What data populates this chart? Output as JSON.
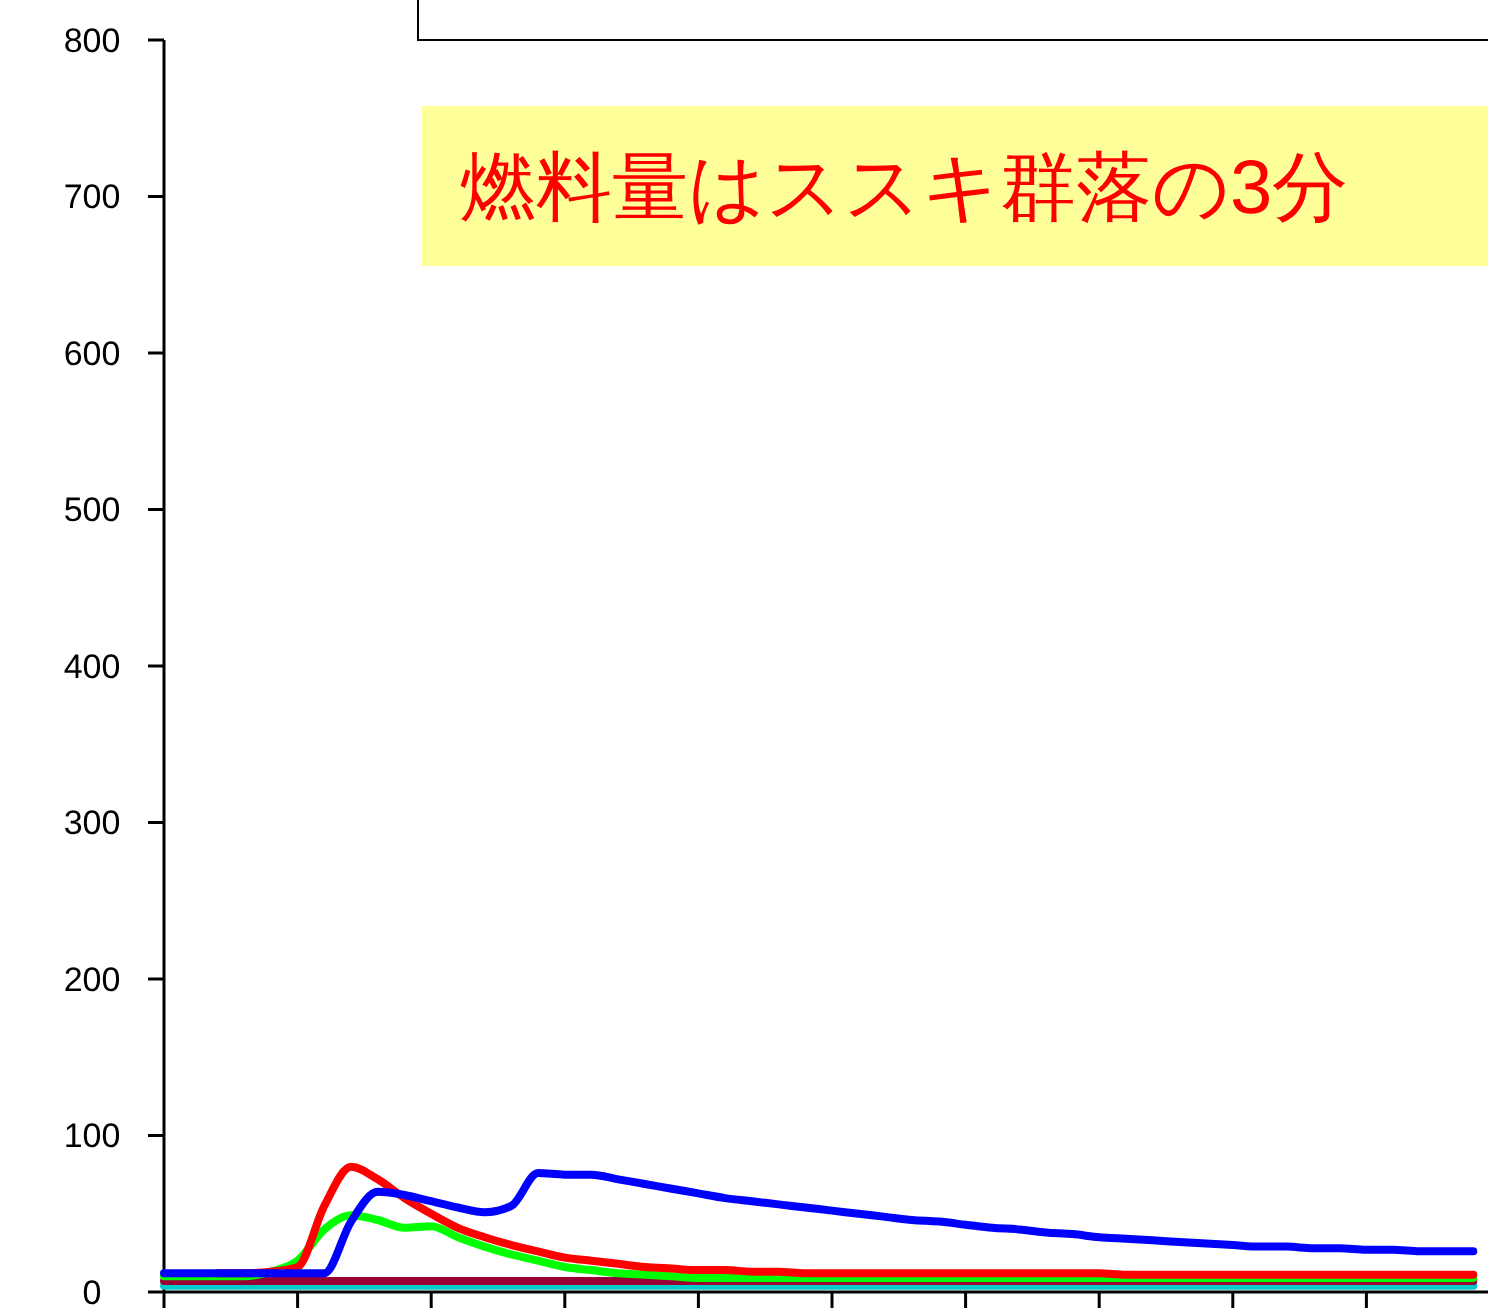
{
  "chart_data": {
    "type": "line",
    "categories": [
      null,
      null,
      null,
      null,
      null,
      null,
      null,
      null,
      null,
      null,
      null,
      null,
      null,
      null,
      null,
      null,
      null,
      null,
      null,
      null,
      null,
      null,
      null,
      null,
      null,
      null,
      null,
      null,
      null,
      null,
      null,
      null,
      null,
      null,
      null,
      null,
      null,
      null,
      null,
      null,
      null,
      null,
      null,
      null,
      null,
      null,
      null,
      null,
      null,
      null
    ],
    "series": [
      {
        "color": "#00cccc",
        "values": [
          4,
          4,
          4,
          4,
          4,
          4,
          4,
          4,
          4,
          4,
          4,
          4,
          4,
          4,
          4,
          4,
          4,
          4,
          4,
          4,
          4,
          4,
          4,
          4,
          4,
          4,
          4,
          4,
          4,
          4,
          4,
          4,
          4,
          4,
          4,
          4,
          4,
          4,
          4,
          4,
          4,
          4,
          4,
          4,
          4,
          4,
          4,
          4,
          4,
          4
        ]
      },
      {
        "color": "#990033",
        "values": [
          7,
          7,
          7,
          7,
          7,
          7,
          7,
          7,
          7,
          7,
          7,
          7,
          7,
          7,
          7,
          7,
          7,
          7,
          7,
          7,
          7,
          7,
          7,
          7,
          7,
          7,
          7,
          7,
          7,
          7,
          7,
          7,
          7,
          7,
          7,
          7,
          7,
          7,
          7,
          7,
          7,
          7,
          7,
          7,
          7,
          7,
          7,
          7,
          7,
          7
        ]
      },
      {
        "color": "#00ff00",
        "values": [
          10,
          10,
          10,
          10,
          13,
          20,
          40,
          49,
          46,
          41,
          42,
          35,
          29,
          24,
          20,
          16,
          14,
          12,
          11,
          10,
          9,
          9,
          9,
          9,
          9,
          9,
          9,
          9,
          9,
          9,
          9,
          9,
          9,
          9,
          9,
          9,
          9,
          9,
          9,
          9,
          9,
          9,
          9,
          9,
          9,
          9,
          9,
          9,
          9,
          9
        ]
      },
      {
        "color": "#ff0000",
        "values": [
          null,
          null,
          12,
          12,
          13,
          16,
          55,
          80,
          72,
          60,
          50,
          41,
          35,
          30,
          26,
          22,
          20,
          18,
          16,
          15,
          14,
          14,
          13,
          13,
          12,
          12,
          12,
          12,
          12,
          12,
          12,
          12,
          12,
          12,
          12,
          12,
          11,
          11,
          11,
          11,
          11,
          11,
          11,
          11,
          11,
          11,
          11,
          11,
          11,
          11
        ]
      },
      {
        "color": "#0000ff",
        "values": [
          12,
          12,
          12,
          12,
          12,
          12,
          12,
          45,
          64,
          62,
          58,
          54,
          51,
          55,
          76,
          75,
          75,
          72,
          69,
          66,
          63,
          60,
          58,
          56,
          54,
          52,
          50,
          48,
          46,
          45,
          43,
          41,
          40,
          38,
          37,
          35,
          34,
          33,
          32,
          31,
          30,
          29,
          29,
          28,
          28,
          27,
          27,
          26,
          26,
          26
        ]
      }
    ],
    "ylim": [
      0,
      800
    ],
    "yticks": [
      0,
      100,
      200,
      300,
      400,
      500,
      600,
      700,
      800
    ],
    "grid": false,
    "tick_labels": "y",
    "annotations": [
      "燃料量はススキ群落の3分"
    ]
  }
}
